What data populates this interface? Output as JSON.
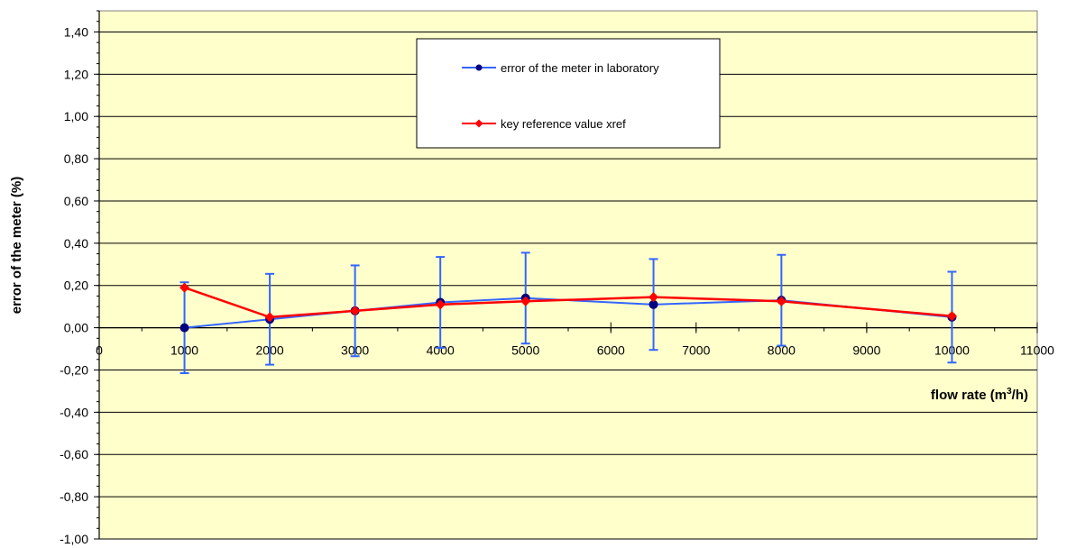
{
  "chart_data": {
    "type": "line",
    "title": "",
    "xlabel": "flow rate (m",
    "xlabel_sup": "3",
    "xlabel_tail": "/h)",
    "ylabel": "error of the meter (%)",
    "xlim": [
      0,
      11000
    ],
    "ylim": [
      -1.0,
      1.5
    ],
    "x_ticks": [
      0,
      1000,
      2000,
      3000,
      4000,
      5000,
      6000,
      7000,
      8000,
      9000,
      10000,
      11000
    ],
    "x_tick_labels": [
      "0",
      "1000",
      "2000",
      "3000",
      "4000",
      "5000",
      "6000",
      "7000",
      "8000",
      "9000",
      "10000",
      "11000"
    ],
    "y_ticks": [
      -1.0,
      -0.8,
      -0.6,
      -0.4,
      -0.2,
      0.0,
      0.2,
      0.4,
      0.6,
      0.8,
      1.0,
      1.2,
      1.4
    ],
    "y_tick_labels": [
      "-1,00",
      "-0,80",
      "-0,60",
      "-0,40",
      "-0,20",
      "0,00",
      "0,20",
      "0,40",
      "0,60",
      "0,80",
      "1,00",
      "1,20",
      "1,40"
    ],
    "grid": "horizontal",
    "background_color": "#FFFFCC",
    "legend_position": "top-center",
    "series": [
      {
        "name": "error of the meter in laboratory",
        "color": "#3366FF",
        "marker_color": "#000080",
        "marker": "circle",
        "x": [
          1000,
          2000,
          3000,
          4000,
          5000,
          6500,
          8000,
          10000
        ],
        "y": [
          0.0,
          0.04,
          0.08,
          0.12,
          0.14,
          0.11,
          0.13,
          0.05
        ],
        "error": [
          0.215,
          0.215,
          0.215,
          0.215,
          0.215,
          0.215,
          0.215,
          0.215
        ]
      },
      {
        "name": "key reference value xref",
        "color": "#FF0000",
        "marker_color": "#FF0000",
        "marker": "diamond",
        "x": [
          1000,
          2000,
          3000,
          4000,
          5000,
          6500,
          8000,
          10000
        ],
        "y": [
          0.19,
          0.05,
          0.08,
          0.11,
          0.125,
          0.145,
          0.125,
          0.055
        ]
      }
    ]
  }
}
